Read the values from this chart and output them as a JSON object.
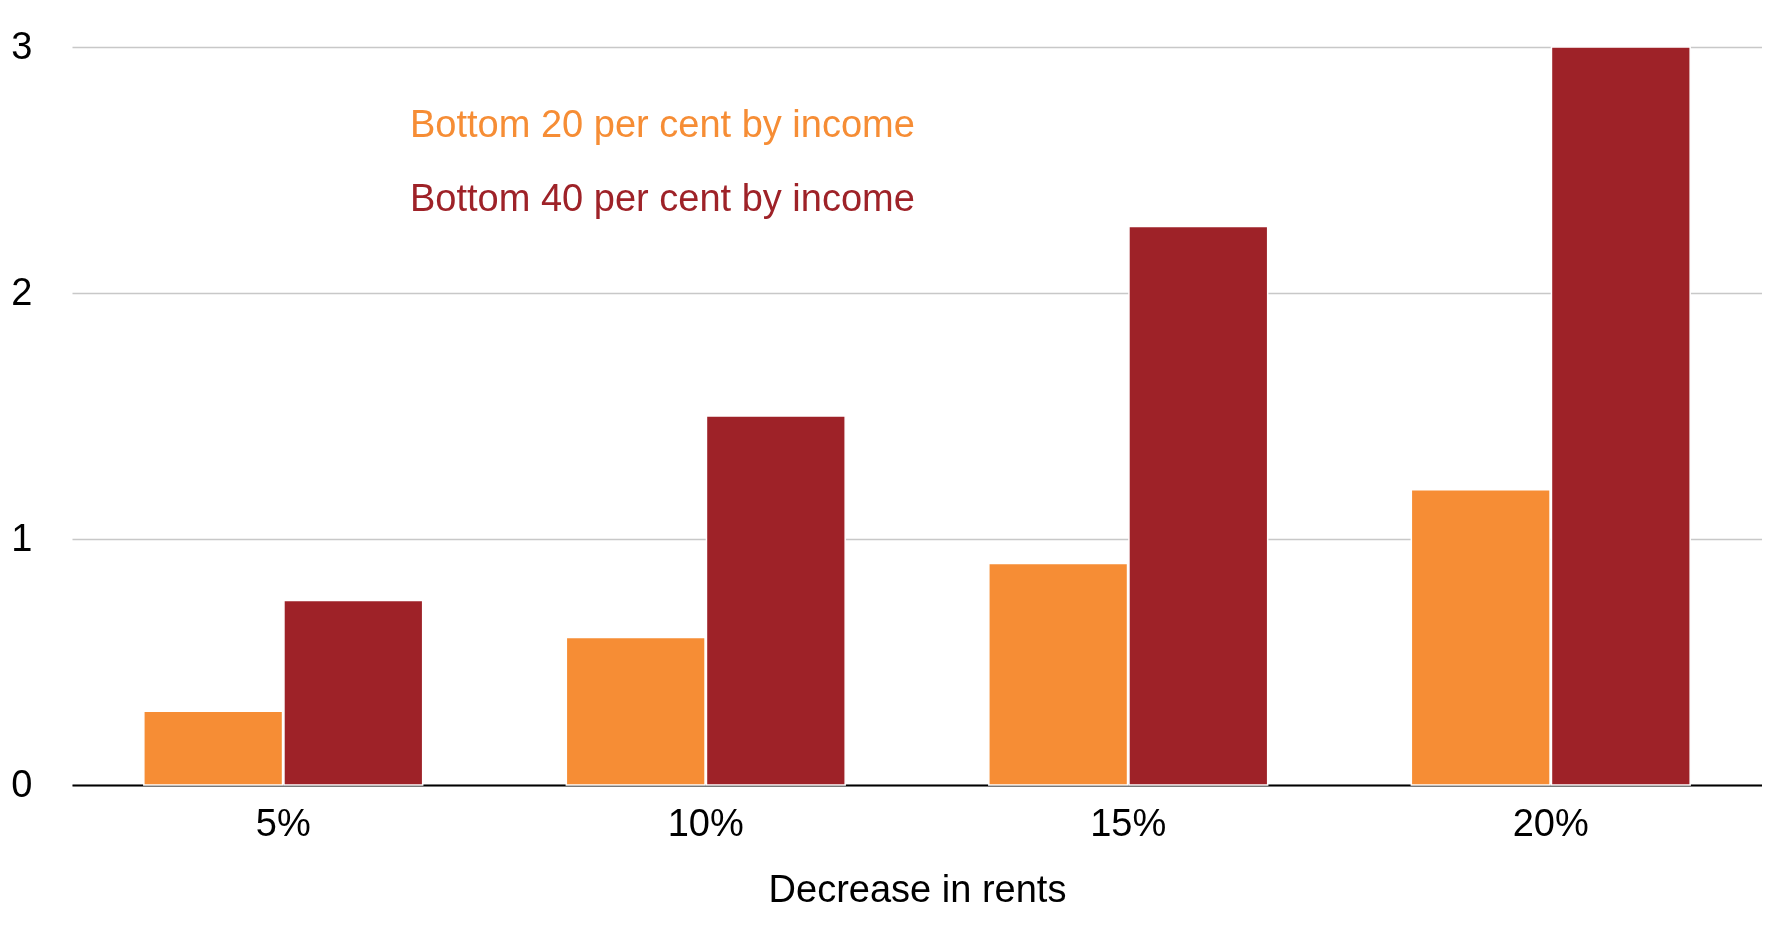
{
  "chart_data": {
    "type": "bar",
    "xlabel": "Decrease in rents",
    "categories": [
      "5%",
      "10%",
      "15%",
      "20%"
    ],
    "series": [
      {
        "name": "Bottom 20 per cent by income",
        "color": "#f68d35",
        "values": [
          0.3,
          0.6,
          0.9,
          1.2
        ]
      },
      {
        "name": "Bottom 40 per cent by income",
        "color": "#9e2228",
        "values": [
          0.75,
          1.5,
          2.27,
          3
        ]
      }
    ],
    "ylim": [
      0,
      3
    ],
    "yticks": [
      0,
      1,
      2,
      3
    ],
    "grid": "y",
    "legend": "top left"
  }
}
